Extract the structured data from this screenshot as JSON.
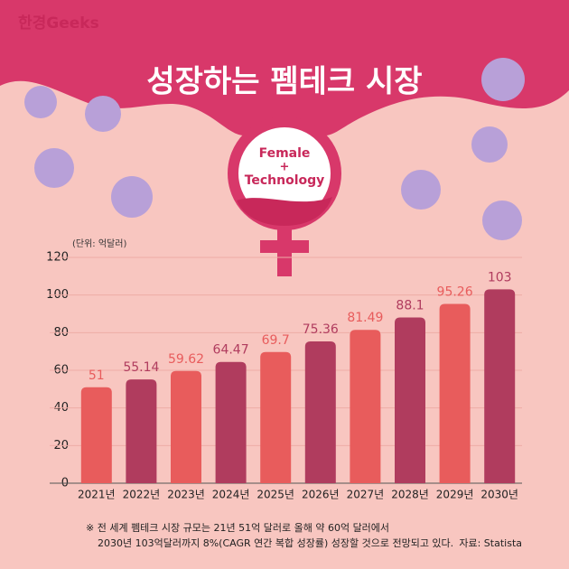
{
  "brand": "한경Geeks",
  "emblem": [
    "Female",
    "+",
    "Technology"
  ],
  "chart_data": {
    "type": "bar",
    "title": "성장하는 펨테크 시장",
    "y_label": "(단위: 억달러)",
    "categories": [
      "2021년",
      "2022년",
      "2023년",
      "2024년",
      "2025년",
      "2026년",
      "2027년",
      "2028년",
      "2029년",
      "2030년"
    ],
    "values": [
      51,
      55.14,
      59.62,
      64.47,
      69.7,
      75.36,
      81.49,
      88.1,
      95.26,
      103
    ],
    "colors": [
      "#e85c5c",
      "#b03c5e",
      "#e85c5c",
      "#b03c5e",
      "#e85c5c",
      "#b03c5e",
      "#e85c5c",
      "#b03c5e",
      "#e85c5c",
      "#b03c5e"
    ],
    "ylim": [
      0,
      120
    ],
    "yticks": [
      0,
      20,
      40,
      60,
      80,
      100,
      120
    ],
    "grid": true,
    "notes": [
      "※ 전 세계 펨테크 시장 규모는 21년 51억 달러로 올해 약 60억 달러에서",
      "2030년 103억달러까지 8%(CAGR 연간 복합 성장률) 성장할 것으로 전망되고 있다."
    ],
    "source": "자료: Statista"
  }
}
